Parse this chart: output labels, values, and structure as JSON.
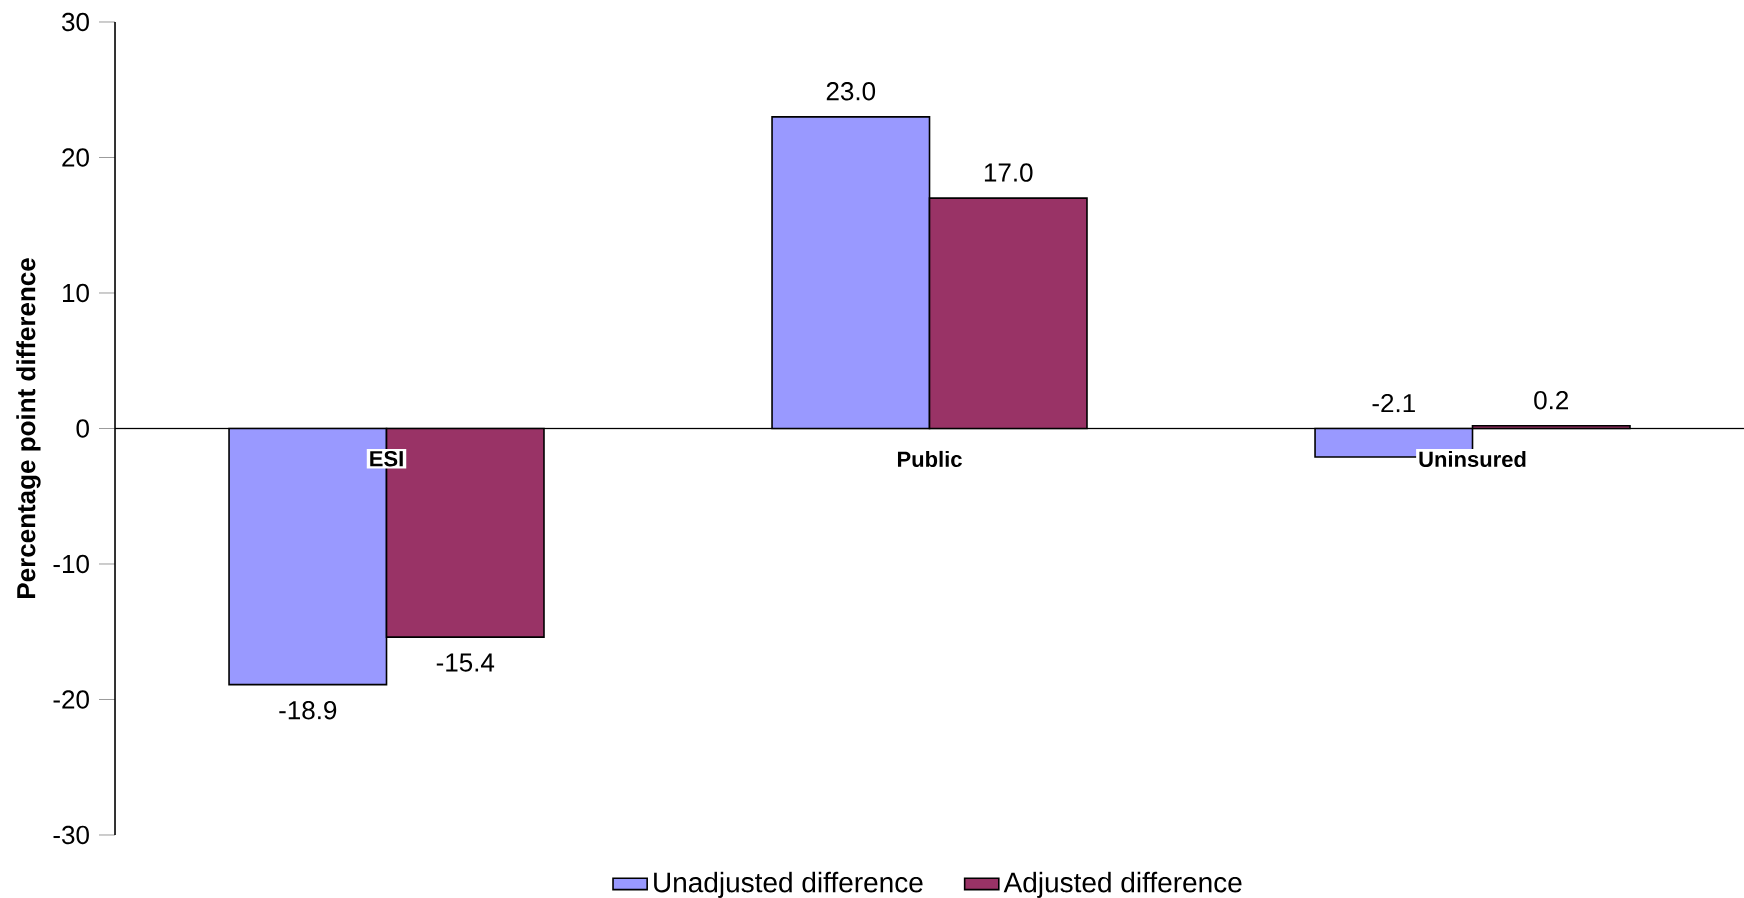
{
  "chart_data": {
    "type": "bar",
    "ylabel": "Percentage point difference",
    "categories": [
      "ESI",
      "Public",
      "Uninsured"
    ],
    "series": [
      {
        "name": "Unadjusted difference",
        "color": "#9999ff",
        "values": [
          -18.9,
          23.0,
          -2.1
        ],
        "value_labels": [
          "-18.9",
          "23.0",
          "-2.1"
        ]
      },
      {
        "name": "Adjusted difference",
        "color": "#993366",
        "values": [
          -15.4,
          17.0,
          0.2
        ],
        "value_labels": [
          "-15.4",
          "17.0",
          "0.2"
        ]
      }
    ],
    "ylim": [
      -30,
      30
    ],
    "yticks": [
      -30,
      -20,
      -10,
      0,
      10,
      20,
      30
    ],
    "grid": false,
    "legend": "bottom"
  }
}
